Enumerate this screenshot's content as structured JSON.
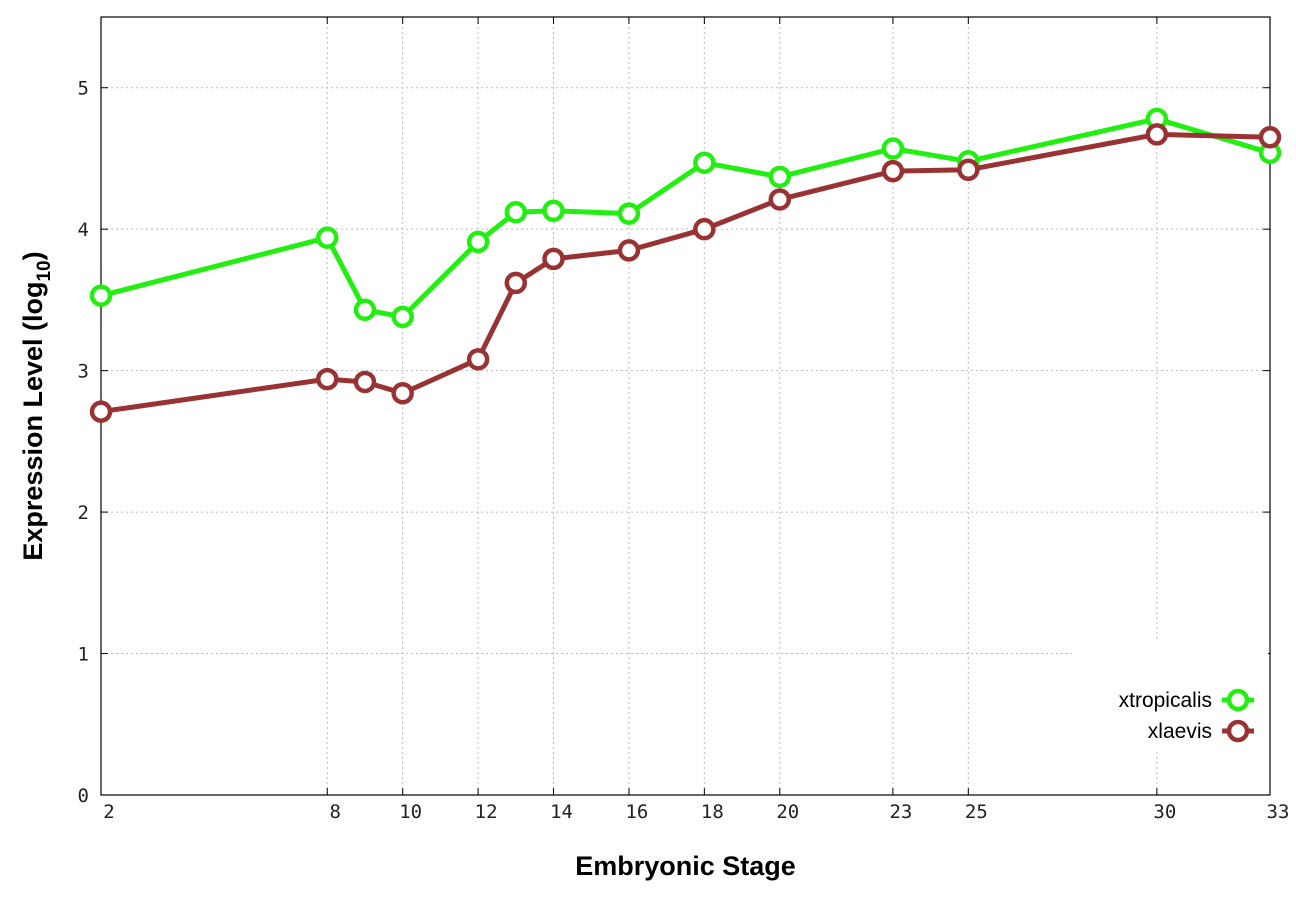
{
  "chart_data": {
    "type": "line",
    "xlabel": "Embryonic Stage",
    "ylabel_main": "Expression Level (log",
    "ylabel_sub": "10",
    "ylabel_close": ")",
    "x": [
      2,
      8,
      9,
      10,
      12,
      13,
      14,
      16,
      18,
      20,
      23,
      25,
      30,
      33
    ],
    "x_ticks": [
      2,
      8,
      10,
      12,
      14,
      16,
      18,
      20,
      23,
      25,
      30,
      33
    ],
    "x_tick_labels": [
      "2",
      "8",
      "10",
      "12",
      "14",
      "16",
      "18",
      "20",
      "23",
      "25",
      "30",
      "33"
    ],
    "xlim": [
      2,
      33
    ],
    "ylim": [
      0,
      5.5
    ],
    "y_ticks": [
      0,
      1,
      2,
      3,
      4,
      5
    ],
    "y_tick_labels": [
      "0",
      "1",
      "2",
      "3",
      "4",
      "5"
    ],
    "grid": true,
    "legend_position": "bottom-right",
    "series": [
      {
        "name": "xtropicalis",
        "color": "#22ee11",
        "values": [
          3.53,
          3.94,
          3.43,
          3.38,
          3.91,
          4.12,
          4.13,
          4.11,
          4.47,
          4.37,
          4.57,
          4.48,
          4.78,
          4.54
        ]
      },
      {
        "name": "xlaevis",
        "color": "#993333",
        "values": [
          2.71,
          2.94,
          2.92,
          2.84,
          3.08,
          3.62,
          3.79,
          3.85,
          4.0,
          4.21,
          4.41,
          4.42,
          4.67,
          4.65
        ]
      }
    ]
  }
}
